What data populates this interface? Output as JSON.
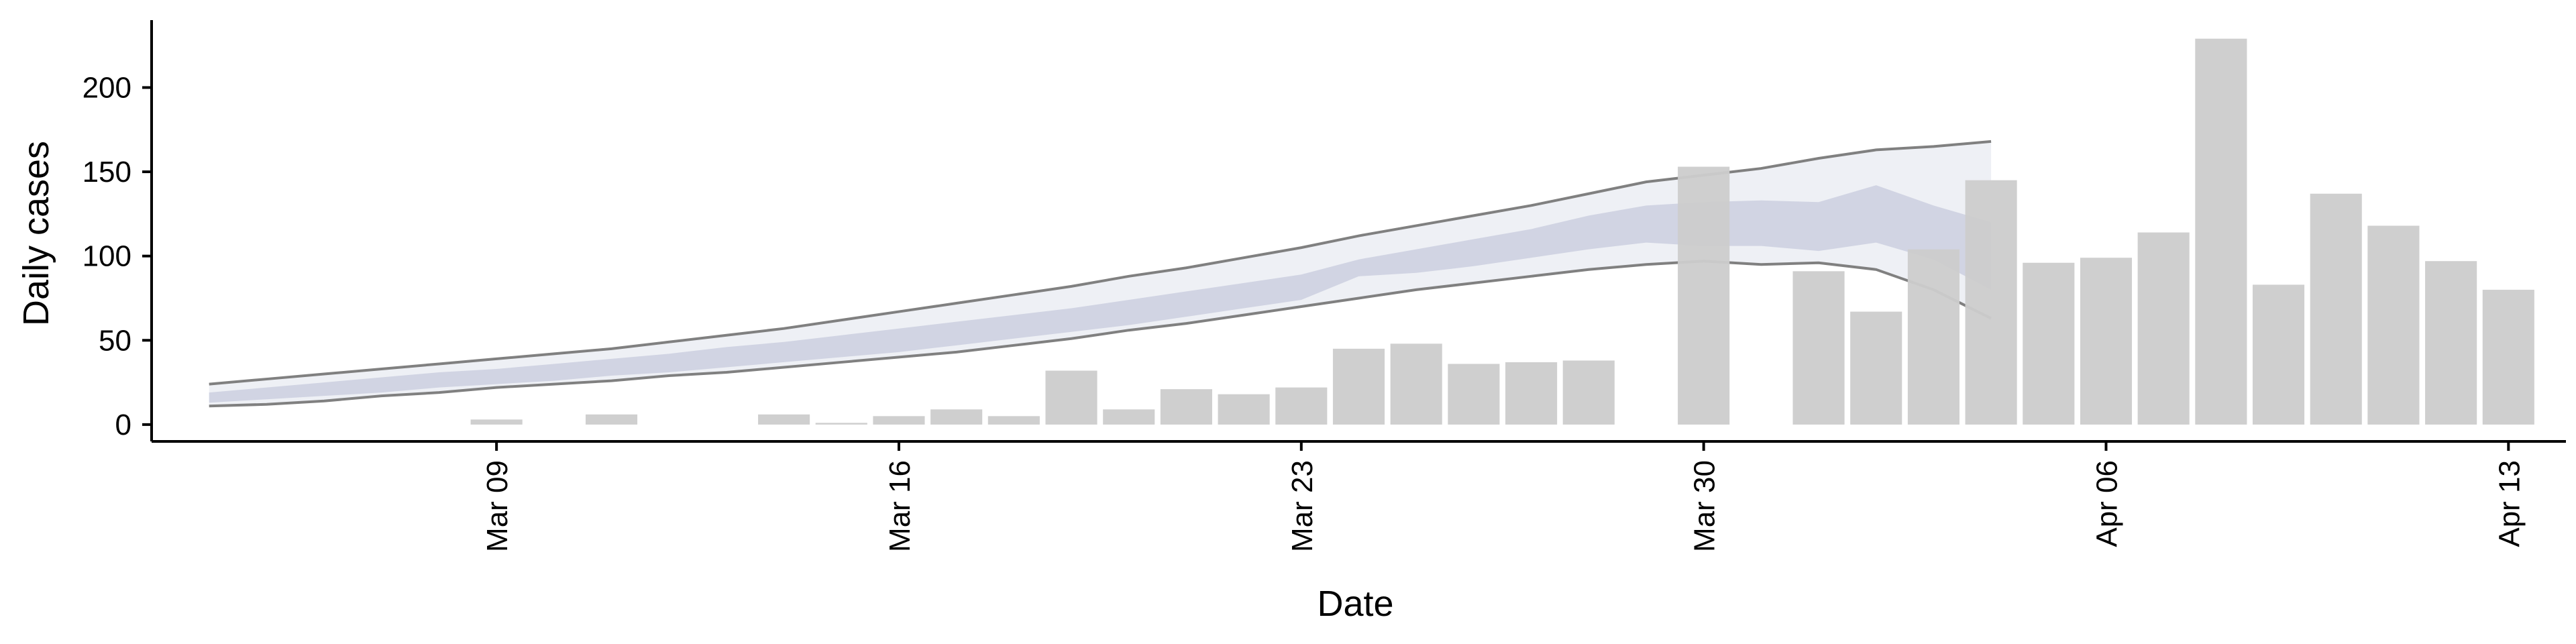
{
  "chart_data": {
    "type": "bar",
    "xlabel": "Date",
    "ylabel": "Daily cases",
    "x_ticks": [
      {
        "date": "2020-03-09",
        "label": "Mar 09"
      },
      {
        "date": "2020-03-16",
        "label": "Mar 16"
      },
      {
        "date": "2020-03-23",
        "label": "Mar 23"
      },
      {
        "date": "2020-03-30",
        "label": "Mar 30"
      },
      {
        "date": "2020-04-06",
        "label": "Apr 06"
      },
      {
        "date": "2020-04-13",
        "label": "Apr 13"
      }
    ],
    "y_ticks": [
      0,
      50,
      100,
      150,
      200
    ],
    "ylim": [
      -10,
      240
    ],
    "xlim": [
      "2020-03-03",
      "2020-04-14"
    ],
    "grid": false,
    "colors": {
      "bars": "#cccccc",
      "outer_band": "#eceef4",
      "inner_band": "#c9cddf",
      "bound_lines": "#808080",
      "axis": "#000000"
    },
    "daily_cases": {
      "dates": [
        "2020-03-09",
        "2020-03-11",
        "2020-03-14",
        "2020-03-15",
        "2020-03-16",
        "2020-03-17",
        "2020-03-18",
        "2020-03-19",
        "2020-03-20",
        "2020-03-21",
        "2020-03-22",
        "2020-03-23",
        "2020-03-24",
        "2020-03-25",
        "2020-03-26",
        "2020-03-27",
        "2020-03-28",
        "2020-03-30",
        "2020-04-01",
        "2020-04-02",
        "2020-04-03",
        "2020-04-04",
        "2020-04-05",
        "2020-04-06",
        "2020-04-07",
        "2020-04-08",
        "2020-04-09",
        "2020-04-10",
        "2020-04-11",
        "2020-04-12",
        "2020-04-13"
      ],
      "values": [
        3,
        6,
        6,
        1,
        5,
        9,
        5,
        32,
        9,
        21,
        18,
        22,
        45,
        48,
        36,
        37,
        38,
        153,
        91,
        67,
        104,
        145,
        96,
        99,
        114,
        229,
        83,
        137,
        118,
        97,
        80
      ]
    },
    "projection": {
      "dates": [
        "2020-03-04",
        "2020-03-05",
        "2020-03-06",
        "2020-03-07",
        "2020-03-08",
        "2020-03-09",
        "2020-03-10",
        "2020-03-11",
        "2020-03-12",
        "2020-03-13",
        "2020-03-14",
        "2020-03-15",
        "2020-03-16",
        "2020-03-17",
        "2020-03-18",
        "2020-03-19",
        "2020-03-20",
        "2020-03-21",
        "2020-03-22",
        "2020-03-23",
        "2020-03-24",
        "2020-03-25",
        "2020-03-26",
        "2020-03-27",
        "2020-03-28",
        "2020-03-29",
        "2020-03-30",
        "2020-03-31",
        "2020-04-01",
        "2020-04-02",
        "2020-04-03",
        "2020-04-04"
      ],
      "upper": [
        24,
        27,
        30,
        33,
        36,
        39,
        42,
        45,
        49,
        53,
        57,
        62,
        67,
        72,
        77,
        82,
        88,
        93,
        99,
        105,
        112,
        118,
        124,
        130,
        137,
        144,
        148,
        152,
        158,
        163,
        165,
        168
      ],
      "inner_upper": [
        19,
        22,
        25,
        28,
        31,
        33,
        36,
        39,
        42,
        46,
        49,
        53,
        57,
        61,
        65,
        69,
        74,
        79,
        84,
        89,
        98,
        104,
        110,
        116,
        124,
        130,
        132,
        133,
        132,
        142,
        130,
        120
      ],
      "inner_lower": [
        13,
        15,
        17,
        19,
        22,
        24,
        26,
        29,
        31,
        34,
        37,
        40,
        43,
        47,
        51,
        55,
        59,
        64,
        69,
        74,
        88,
        90,
        94,
        99,
        104,
        108,
        106,
        106,
        103,
        108,
        98,
        80
      ],
      "lower": [
        11,
        12,
        14,
        17,
        19,
        22,
        24,
        26,
        29,
        31,
        34,
        37,
        40,
        43,
        47,
        51,
        56,
        60,
        65,
        70,
        75,
        80,
        84,
        88,
        92,
        95,
        97,
        95,
        96,
        92,
        80,
        63
      ]
    }
  }
}
